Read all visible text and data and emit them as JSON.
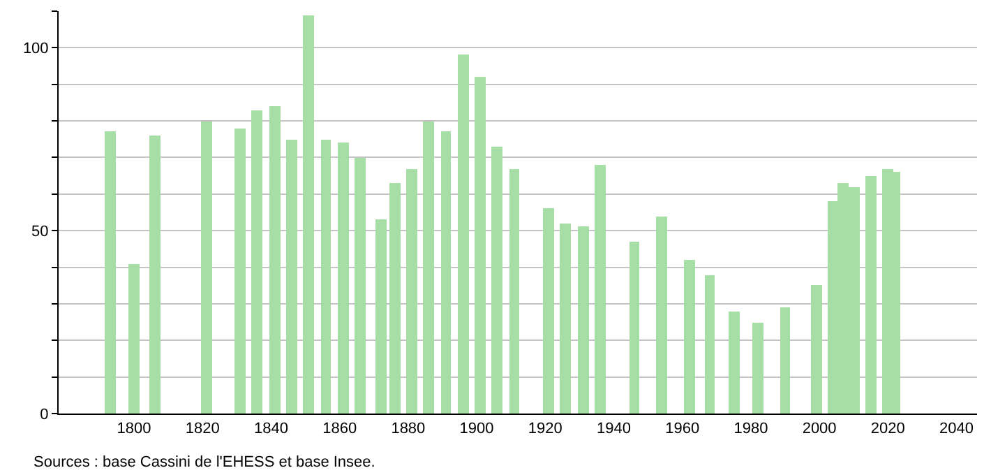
{
  "chart_data": {
    "type": "bar",
    "x": [
      1793,
      1800,
      1806,
      1821,
      1831,
      1836,
      1841,
      1846,
      1851,
      1856,
      1861,
      1866,
      1872,
      1876,
      1881,
      1886,
      1891,
      1896,
      1901,
      1906,
      1911,
      1921,
      1926,
      1931,
      1936,
      1946,
      1954,
      1962,
      1968,
      1975,
      1982,
      1990,
      1999,
      2004,
      2007,
      2010,
      2015,
      2020,
      2022
    ],
    "values": [
      77,
      41,
      76,
      80,
      78,
      83,
      84,
      75,
      109,
      75,
      74,
      70,
      53,
      63,
      67,
      80,
      77,
      98,
      92,
      73,
      67,
      56,
      52,
      51,
      68,
      47,
      54,
      42,
      38,
      28,
      25,
      29,
      35,
      58,
      63,
      62,
      65,
      67,
      66
    ],
    "color": "#a6dea6",
    "xlim": [
      1778,
      2046
    ],
    "xticks": [
      1800,
      1820,
      1840,
      1860,
      1880,
      1900,
      1920,
      1940,
      1960,
      1980,
      2000,
      2020,
      2040
    ],
    "ylim": [
      0,
      110
    ],
    "yticks": [
      0,
      {
        "value": 10,
        "label": null
      },
      {
        "value": 20,
        "label": null
      },
      {
        "value": 30,
        "label": null
      },
      {
        "value": 40,
        "label": null
      },
      50,
      {
        "value": 60,
        "label": null
      },
      {
        "value": 70,
        "label": null
      },
      {
        "value": 80,
        "label": null
      },
      {
        "value": 90,
        "label": null
      },
      100,
      {
        "value": 110,
        "label": null
      }
    ],
    "grid": "y",
    "annotations": [
      "Sources : base Cassini de l'EHESS et base Insee."
    ]
  }
}
